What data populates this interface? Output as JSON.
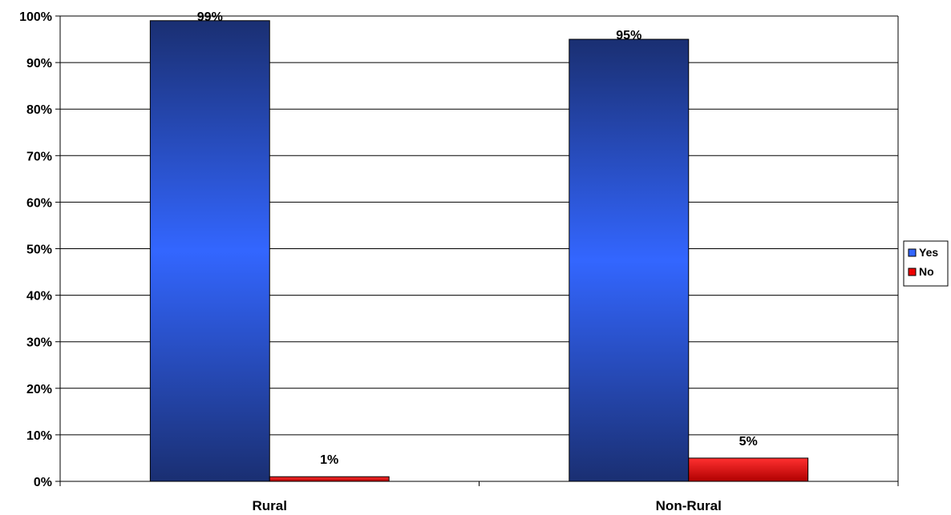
{
  "chart_data": {
    "type": "bar",
    "categories": [
      "Rural",
      "Non-Rural"
    ],
    "series": [
      {
        "name": "Yes",
        "values": [
          99,
          95
        ],
        "labels": [
          "99%",
          "95%"
        ],
        "color": "#3366ff"
      },
      {
        "name": "No",
        "values": [
          1,
          5
        ],
        "labels": [
          "1%",
          "5%"
        ],
        "color": "#ee0000"
      }
    ],
    "title": "",
    "xlabel": "",
    "ylabel": "",
    "ylim": [
      0,
      100
    ],
    "yticks": [
      {
        "value": 0,
        "label": "0%"
      },
      {
        "value": 10,
        "label": "10%"
      },
      {
        "value": 20,
        "label": "20%"
      },
      {
        "value": 30,
        "label": "30%"
      },
      {
        "value": 40,
        "label": "40%"
      },
      {
        "value": 50,
        "label": "50%"
      },
      {
        "value": 60,
        "label": "60%"
      },
      {
        "value": 70,
        "label": "70%"
      },
      {
        "value": 80,
        "label": "80%"
      },
      {
        "value": 90,
        "label": "90%"
      },
      {
        "value": 100,
        "label": "100%"
      }
    ],
    "grid": true,
    "legend": "right"
  }
}
